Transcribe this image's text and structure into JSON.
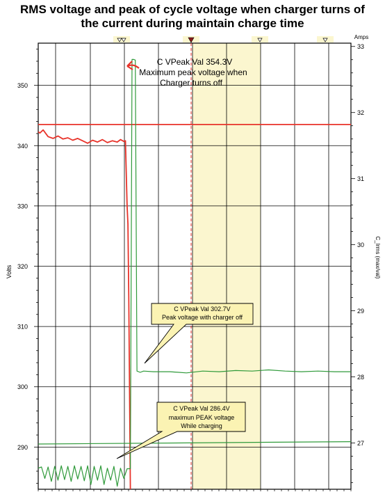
{
  "chart_data": {
    "type": "line",
    "title_line1": "RMS voltage and peak of cycle voltage when charger turns of",
    "title_line2": "the current during maintain charge time",
    "y_left_label": "Volts",
    "y_right_label": "C_Irms (max/val)",
    "y_right_unit": "Amps",
    "y_left_range": [
      283,
      357
    ],
    "y_right_range": [
      26.3,
      33.05
    ],
    "y_left_ticks": [
      "350",
      "340",
      "330",
      "320",
      "310",
      "300",
      "290"
    ],
    "y_right_ticks": [
      "33",
      "32",
      "31",
      "30",
      "29",
      "28",
      "27"
    ],
    "grid": true,
    "shaded_band": "light yellow region between two vertical gridlines right of the cursor",
    "cursor": "red dashed vertical line with marker",
    "series": [
      {
        "color": "#e8332a",
        "description": "RMS voltage before the charger turns off, then a steep drop",
        "x": [
          0,
          0.01,
          0.03,
          0.06,
          0.09,
          0.12,
          0.15,
          0.18,
          0.21,
          0.24,
          0.27,
          0.3,
          0.33,
          0.36,
          0.39,
          0.42,
          0.45,
          0.48,
          0.5,
          0.52,
          0.53,
          0.54,
          0.545,
          0.55,
          0.56
        ],
        "y": [
          342.3,
          342.1,
          342.6,
          341.5,
          341.2,
          341.6,
          341.1,
          341.3,
          340.9,
          341.2,
          340.8,
          340.4,
          340.9,
          340.6,
          341.0,
          340.5,
          340.8,
          340.6,
          341.0,
          340.7,
          340.8,
          330,
          327,
          315,
          283
        ]
      },
      {
        "color": "#e8332a",
        "description": "Horizontal RMS current reference level",
        "x": [
          0,
          1.9
        ],
        "y": [
          343.5,
          343.5
        ]
      },
      {
        "color": "#2f9a3a",
        "description": "Peak of cycle voltage (C VPeak Val)",
        "x": [
          0,
          0.02,
          0.04,
          0.06,
          0.08,
          0.1,
          0.12,
          0.14,
          0.16,
          0.18,
          0.2,
          0.22,
          0.24,
          0.26,
          0.28,
          0.3,
          0.32,
          0.34,
          0.36,
          0.38,
          0.4,
          0.42,
          0.44,
          0.46,
          0.48,
          0.5,
          0.52,
          0.54,
          0.56,
          0.57,
          0.58,
          0.59,
          0.6,
          0.62,
          0.64,
          0.7,
          0.8,
          0.9,
          1.0,
          1.1,
          1.2,
          1.3,
          1.4,
          1.5,
          1.6,
          1.7,
          1.8,
          1.9
        ],
        "y": [
          286.5,
          286.7,
          284.8,
          286.7,
          284.3,
          286.8,
          284.5,
          286.9,
          284.6,
          286.8,
          284.3,
          286.9,
          284.7,
          286.8,
          284.4,
          286.9,
          283.8,
          286.8,
          284.5,
          286.9,
          283.8,
          286.5,
          284.5,
          286.8,
          283.5,
          286.5,
          284.8,
          286.4,
          286.4,
          354.3,
          354.3,
          354.2,
          302.6,
          302.4,
          302.6,
          302.5,
          302.5,
          302.3,
          302.6,
          302.5,
          302.7,
          302.6,
          302.8,
          302.6,
          302.5,
          302.6,
          302.5,
          302.5
        ]
      },
      {
        "color": "#2f9a3a",
        "description": "Horizontal current level near 27 A",
        "x": [
          0,
          1.9
        ],
        "y": [
          290.5,
          290.9
        ]
      }
    ],
    "annotations": [
      {
        "text_lines": [
          "C VPeak Val 354.3V",
          "Maximum peak voltage when",
          "Charger turns off"
        ]
      },
      {
        "text_lines": [
          "C VPeak Val 302.7V",
          "Peak voltage with charger off"
        ]
      },
      {
        "text_lines": [
          "C VPeak Val 286.4V",
          "maximun PEAK voltage",
          "While charging"
        ]
      }
    ]
  },
  "colors": {
    "rms_line": "#e8332a",
    "peak_line": "#2f9a3a",
    "band": "#fbf6cf",
    "callout_fill": "#fbf3b3",
    "grid": "#000000"
  }
}
